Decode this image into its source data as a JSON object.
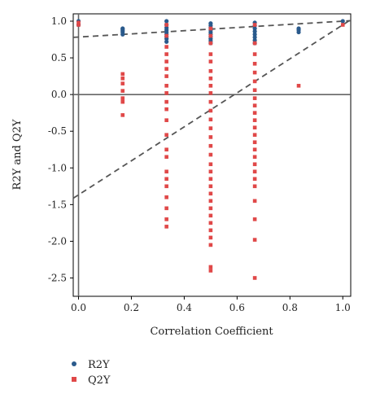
{
  "chart_data": {
    "type": "scatter",
    "title": "",
    "xlabel": "Correlation Coefficient",
    "ylabel": "R2Y and Q2Y",
    "xlim": [
      -0.02,
      1.03
    ],
    "ylim": [
      -2.75,
      1.1
    ],
    "x_ticks": [
      "0.0",
      "0.2",
      "0.4",
      "0.6",
      "0.8",
      "1.0"
    ],
    "x_tick_values": [
      0.0,
      0.2,
      0.4,
      0.6,
      0.8,
      1.0
    ],
    "y_ticks": [
      "1.0",
      "0.5",
      "0.0",
      "-0.5",
      "-1.0",
      "-1.5",
      "-2.0",
      "-2.5"
    ],
    "y_tick_values": [
      1.0,
      0.5,
      0.0,
      -0.5,
      -1.0,
      -1.5,
      -2.0,
      -2.5
    ],
    "grid": false,
    "legend_position": "bottom-left",
    "reference_lines": [
      {
        "type": "h",
        "y": 0.0,
        "style": "solid"
      },
      {
        "type": "v",
        "x": 0.0,
        "style": "solid"
      }
    ],
    "series": [
      {
        "name": "R2Y",
        "color": "#2a5a8c",
        "marker": "circle",
        "points": [
          [
            0.0,
            0.95
          ],
          [
            0.0,
            1.0
          ],
          [
            0.167,
            0.85
          ],
          [
            0.167,
            0.87
          ],
          [
            0.167,
            0.89
          ],
          [
            0.167,
            0.82
          ],
          [
            0.167,
            0.9
          ],
          [
            0.333,
            0.72
          ],
          [
            0.333,
            0.76
          ],
          [
            0.333,
            0.79
          ],
          [
            0.333,
            0.82
          ],
          [
            0.333,
            0.85
          ],
          [
            0.333,
            0.88
          ],
          [
            0.333,
            0.91
          ],
          [
            0.333,
            0.95
          ],
          [
            0.333,
            1.0
          ],
          [
            0.5,
            0.7
          ],
          [
            0.5,
            0.73
          ],
          [
            0.5,
            0.76
          ],
          [
            0.5,
            0.79
          ],
          [
            0.5,
            0.82
          ],
          [
            0.5,
            0.85
          ],
          [
            0.5,
            0.88
          ],
          [
            0.5,
            0.91
          ],
          [
            0.5,
            0.94
          ],
          [
            0.5,
            0.97
          ],
          [
            0.667,
            0.7
          ],
          [
            0.667,
            0.74
          ],
          [
            0.667,
            0.78
          ],
          [
            0.667,
            0.82
          ],
          [
            0.667,
            0.86
          ],
          [
            0.667,
            0.9
          ],
          [
            0.667,
            0.94
          ],
          [
            0.667,
            0.98
          ],
          [
            0.833,
            0.85
          ],
          [
            0.833,
            0.88
          ],
          [
            0.833,
            0.9
          ],
          [
            1.0,
            1.0
          ]
        ]
      },
      {
        "name": "Q2Y",
        "color": "#e04848",
        "marker": "square",
        "points": [
          [
            0.0,
            0.95
          ],
          [
            0.0,
            0.98
          ],
          [
            0.167,
            0.28
          ],
          [
            0.167,
            0.22
          ],
          [
            0.167,
            0.15
          ],
          [
            0.167,
            0.05
          ],
          [
            0.167,
            -0.05
          ],
          [
            0.167,
            -0.1
          ],
          [
            0.167,
            -0.28
          ],
          [
            0.333,
            0.95
          ],
          [
            0.333,
            0.8
          ],
          [
            0.333,
            0.65
          ],
          [
            0.333,
            0.55
          ],
          [
            0.333,
            0.45
          ],
          [
            0.333,
            0.35
          ],
          [
            0.333,
            0.25
          ],
          [
            0.333,
            0.12
          ],
          [
            0.333,
            0.02
          ],
          [
            0.333,
            -0.1
          ],
          [
            0.333,
            -0.2
          ],
          [
            0.333,
            -0.35
          ],
          [
            0.333,
            -0.55
          ],
          [
            0.333,
            -0.75
          ],
          [
            0.333,
            -0.85
          ],
          [
            0.333,
            -1.05
          ],
          [
            0.333,
            -1.15
          ],
          [
            0.333,
            -1.25
          ],
          [
            0.333,
            -1.4
          ],
          [
            0.333,
            -1.55
          ],
          [
            0.333,
            -1.7
          ],
          [
            0.333,
            -1.8
          ],
          [
            0.5,
            0.9
          ],
          [
            0.5,
            0.8
          ],
          [
            0.5,
            0.7
          ],
          [
            0.5,
            0.55
          ],
          [
            0.5,
            0.45
          ],
          [
            0.5,
            0.32
          ],
          [
            0.5,
            0.22
          ],
          [
            0.5,
            0.12
          ],
          [
            0.5,
            0.02
          ],
          [
            0.5,
            -0.1
          ],
          [
            0.5,
            -0.22
          ],
          [
            0.5,
            -0.34
          ],
          [
            0.5,
            -0.46
          ],
          [
            0.5,
            -0.58
          ],
          [
            0.5,
            -0.7
          ],
          [
            0.5,
            -0.82
          ],
          [
            0.5,
            -0.95
          ],
          [
            0.5,
            -1.05
          ],
          [
            0.5,
            -1.15
          ],
          [
            0.5,
            -1.25
          ],
          [
            0.5,
            -1.35
          ],
          [
            0.5,
            -1.45
          ],
          [
            0.5,
            -1.55
          ],
          [
            0.5,
            -1.65
          ],
          [
            0.5,
            -1.75
          ],
          [
            0.5,
            -1.85
          ],
          [
            0.5,
            -1.95
          ],
          [
            0.5,
            -2.05
          ],
          [
            0.5,
            -2.35
          ],
          [
            0.5,
            -2.4
          ],
          [
            0.667,
            0.95
          ],
          [
            0.667,
            0.7
          ],
          [
            0.667,
            0.55
          ],
          [
            0.667,
            0.42
          ],
          [
            0.667,
            0.3
          ],
          [
            0.667,
            0.18
          ],
          [
            0.667,
            0.06
          ],
          [
            0.667,
            -0.05
          ],
          [
            0.667,
            -0.15
          ],
          [
            0.667,
            -0.25
          ],
          [
            0.667,
            -0.35
          ],
          [
            0.667,
            -0.45
          ],
          [
            0.667,
            -0.55
          ],
          [
            0.667,
            -0.65
          ],
          [
            0.667,
            -0.75
          ],
          [
            0.667,
            -0.85
          ],
          [
            0.667,
            -0.95
          ],
          [
            0.667,
            -1.05
          ],
          [
            0.667,
            -1.15
          ],
          [
            0.667,
            -1.25
          ],
          [
            0.667,
            -1.45
          ],
          [
            0.667,
            -1.7
          ],
          [
            0.667,
            -1.98
          ],
          [
            0.667,
            -2.5
          ],
          [
            0.833,
            0.12
          ],
          [
            1.0,
            0.95
          ]
        ]
      }
    ]
  }
}
